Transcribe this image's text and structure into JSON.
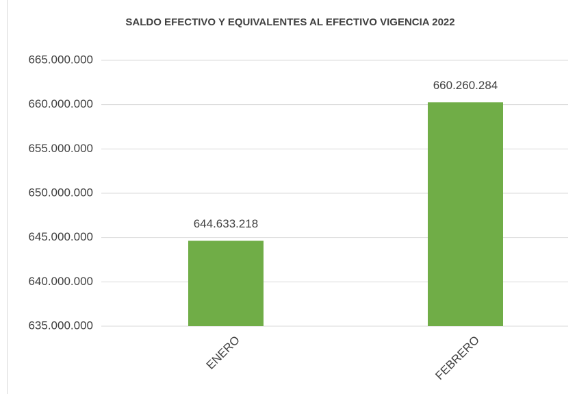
{
  "chart_data": {
    "type": "bar",
    "title": "SALDO EFECTIVO Y EQUIVALENTES AL EFECTIVO  VIGENCIA 2022",
    "categories": [
      "ENERO",
      "FEBRERO"
    ],
    "values": [
      644633218,
      660260284
    ],
    "value_labels": [
      "644.633.218",
      "660.260.284"
    ],
    "color": "#70ad47",
    "ylim": [
      635000000,
      665000000
    ],
    "yticks": [
      {
        "value": 635000000,
        "label": "635.000.000"
      },
      {
        "value": 640000000,
        "label": "640.000.000"
      },
      {
        "value": 645000000,
        "label": "645.000.000"
      },
      {
        "value": 650000000,
        "label": "650.000.000"
      },
      {
        "value": 655000000,
        "label": "655.000.000"
      },
      {
        "value": 660000000,
        "label": "660.000.000"
      },
      {
        "value": 665000000,
        "label": "665.000.000"
      }
    ],
    "grid": true
  }
}
